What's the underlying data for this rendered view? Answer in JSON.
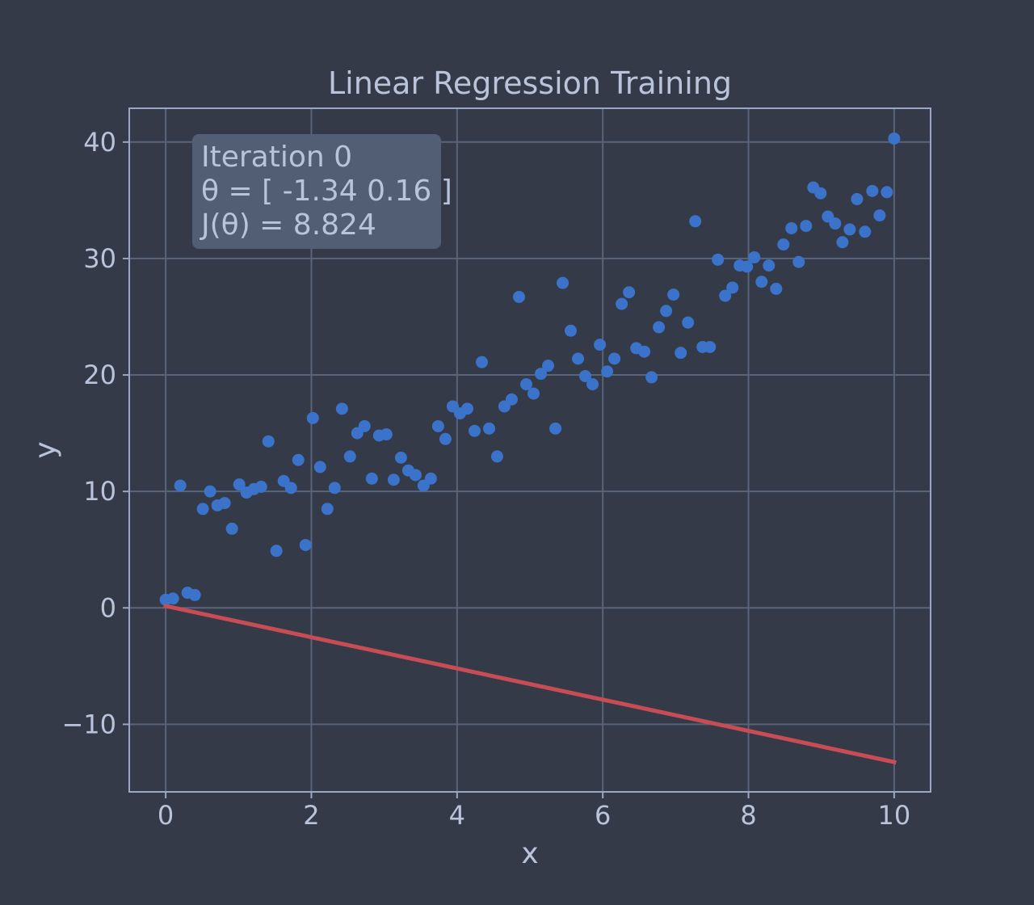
{
  "chart_data": {
    "type": "scatter",
    "title": "Linear Regression Training",
    "xlabel": "x",
    "ylabel": "y",
    "xlim": [
      -0.5,
      10.5
    ],
    "ylim": [
      -15.8,
      42.9
    ],
    "xticks": [
      0,
      2,
      4,
      6,
      8,
      10
    ],
    "xtick_labels": [
      "0",
      "2",
      "4",
      "6",
      "8",
      "10"
    ],
    "yticks": [
      -10,
      0,
      10,
      20,
      30,
      40
    ],
    "ytick_labels": [
      "−10",
      "0",
      "10",
      "20",
      "30",
      "40"
    ],
    "grid": true,
    "annotation": {
      "lines": [
        "Iteration 0",
        "θ = [ -1.34 0.16 ]",
        "J(θ) = 8.824"
      ]
    },
    "series": [
      {
        "type": "scatter",
        "color": "#3a73c9",
        "x": [
          0.0,
          0.1,
          0.2,
          0.3,
          0.4,
          0.51,
          0.61,
          0.71,
          0.81,
          0.91,
          1.01,
          1.11,
          1.21,
          1.31,
          1.41,
          1.52,
          1.62,
          1.72,
          1.82,
          1.92,
          2.02,
          2.12,
          2.22,
          2.32,
          2.42,
          2.53,
          2.63,
          2.73,
          2.83,
          2.93,
          3.03,
          3.13,
          3.23,
          3.33,
          3.43,
          3.54,
          3.64,
          3.74,
          3.84,
          3.94,
          4.04,
          4.14,
          4.24,
          4.34,
          4.44,
          4.55,
          4.65,
          4.75,
          4.85,
          4.95,
          5.05,
          5.15,
          5.25,
          5.35,
          5.45,
          5.56,
          5.66,
          5.76,
          5.86,
          5.96,
          6.06,
          6.16,
          6.26,
          6.36,
          6.46,
          6.57,
          6.67,
          6.77,
          6.87,
          6.97,
          7.07,
          7.17,
          7.27,
          7.37,
          7.47,
          7.58,
          7.68,
          7.78,
          7.88,
          7.98,
          8.08,
          8.18,
          8.28,
          8.38,
          8.48,
          8.59,
          8.69,
          8.79,
          8.89,
          8.99,
          9.09,
          9.19,
          9.29,
          9.39,
          9.49,
          9.6,
          9.7,
          9.8,
          9.9,
          10.0
        ],
        "y": [
          0.7,
          0.8,
          10.5,
          1.3,
          1.1,
          8.5,
          10.0,
          8.8,
          9.0,
          6.8,
          10.6,
          9.9,
          10.2,
          10.4,
          14.3,
          4.9,
          10.9,
          10.3,
          12.7,
          5.4,
          16.3,
          12.1,
          8.5,
          10.3,
          17.1,
          13.0,
          15.0,
          15.6,
          11.1,
          14.8,
          14.9,
          11.0,
          12.9,
          11.8,
          11.4,
          10.5,
          11.1,
          15.6,
          14.5,
          17.3,
          16.7,
          17.1,
          15.2,
          21.1,
          15.4,
          13.0,
          17.3,
          17.9,
          26.7,
          19.2,
          18.4,
          20.1,
          20.8,
          15.4,
          27.9,
          23.8,
          21.4,
          19.9,
          19.2,
          22.6,
          20.3,
          21.4,
          26.1,
          27.1,
          22.3,
          22.0,
          19.8,
          24.1,
          25.5,
          26.9,
          21.9,
          24.5,
          33.2,
          22.4,
          22.4,
          29.9,
          26.8,
          27.5,
          29.4,
          29.3,
          30.1,
          28.0,
          29.4,
          27.4,
          31.2,
          32.6,
          29.7,
          32.8,
          36.1,
          35.6,
          33.6,
          33.0,
          31.4,
          32.5,
          35.1,
          32.3,
          35.8,
          33.7,
          35.7,
          40.3
        ]
      },
      {
        "type": "line",
        "color": "#c84c55",
        "x": [
          0,
          10
        ],
        "y": [
          0.16,
          -13.24
        ]
      }
    ]
  }
}
